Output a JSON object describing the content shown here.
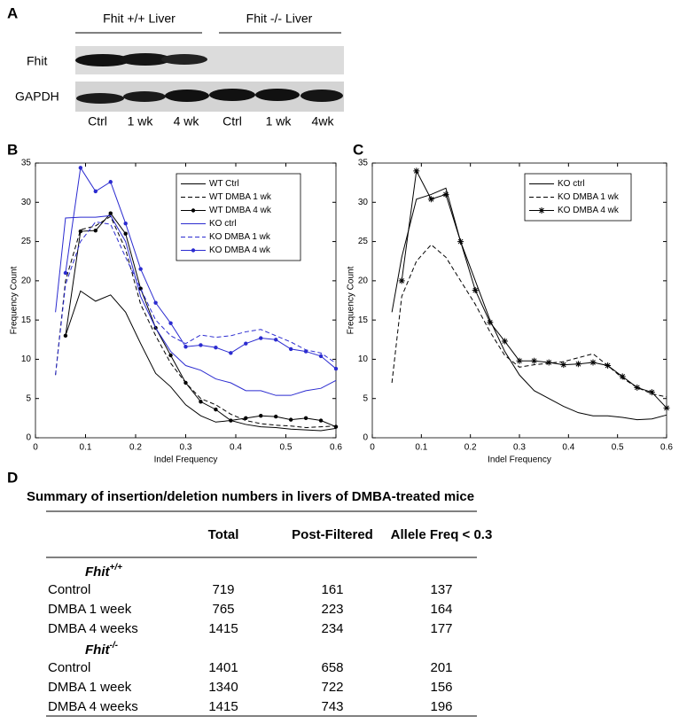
{
  "panel_labels": [
    "A",
    "B",
    "C",
    "D"
  ],
  "blot": {
    "groups": [
      "Fhit +/+ Liver",
      "Fhit  -/- Liver"
    ],
    "rows": [
      "Fhit",
      "GAPDH"
    ],
    "lanes": [
      "Ctrl",
      "1 wk",
      "4 wk",
      "Ctrl",
      "1 wk",
      "4wk"
    ]
  },
  "chart_data": [
    {
      "type": "line",
      "xlabel": "Indel Frequency",
      "ylabel": "Frequency Count",
      "x": [
        0.04,
        0.06,
        0.09,
        0.12,
        0.15,
        0.18,
        0.21,
        0.24,
        0.27,
        0.3,
        0.33,
        0.36,
        0.39,
        0.42,
        0.45,
        0.48,
        0.51,
        0.54,
        0.57,
        0.6
      ],
      "xlim": [
        0,
        0.6
      ],
      "xticks": [
        0,
        0.1,
        0.2,
        0.3,
        0.4,
        0.5,
        0.6
      ],
      "ylim": [
        0,
        35
      ],
      "yticks": [
        0,
        5,
        10,
        15,
        20,
        25,
        30,
        35
      ],
      "legend": "upper right",
      "series": [
        {
          "name": "WT Ctrl",
          "color": "#000000",
          "linestyle": "solid",
          "values": [
            null,
            13,
            18.7,
            17.4,
            18.2,
            16,
            12,
            8.2,
            6.5,
            4.2,
            2.8,
            2.0,
            2.2,
            1.7,
            1.4,
            1.3,
            1.1,
            1.0,
            0.9,
            1.2
          ]
        },
        {
          "name": "WT DMBA 1 wk",
          "color": "#000000",
          "linestyle": "dashed",
          "values": [
            8,
            20,
            26.5,
            27,
            28.2,
            24,
            17,
            13,
            9.5,
            7,
            5,
            4.2,
            3,
            2.2,
            1.8,
            1.6,
            1.5,
            1.3,
            1.4,
            1.5
          ]
        },
        {
          "name": "WT DMBA 4 wk",
          "color": "#000000",
          "linestyle": "solid",
          "marker": "dot",
          "values": [
            null,
            13,
            26.3,
            26.4,
            28.6,
            26,
            19,
            14,
            10.5,
            7,
            4.6,
            3.6,
            2.2,
            2.5,
            2.8,
            2.7,
            2.3,
            2.5,
            2.2,
            1.4
          ]
        },
        {
          "name": "KO ctrl",
          "color": "#2b2bd0",
          "linestyle": "solid",
          "values": [
            16,
            28,
            28.1,
            28.1,
            28.3,
            25,
            18,
            14,
            11,
            9.2,
            8.6,
            7.5,
            7.0,
            6.0,
            6.0,
            5.4,
            5.4,
            6.0,
            6.3,
            7.3
          ]
        },
        {
          "name": "KO DMBA 1 wk",
          "color": "#2b2bd0",
          "linestyle": "dashed",
          "values": [
            8,
            19.5,
            25,
            27.5,
            27.2,
            23,
            19,
            15,
            13,
            12,
            13.1,
            12.8,
            13,
            13.5,
            13.8,
            13,
            12.2,
            11.2,
            10.8,
            9.5
          ]
        },
        {
          "name": "KO DMBA 4 wk",
          "color": "#2b2bd0",
          "linestyle": "solid",
          "marker": "dot",
          "values": [
            null,
            21,
            34.4,
            31.4,
            32.6,
            27.3,
            21.5,
            17.2,
            14.6,
            11.6,
            11.8,
            11.5,
            10.8,
            12.0,
            12.7,
            12.5,
            11.3,
            11.0,
            10.4,
            8.8
          ]
        }
      ]
    },
    {
      "type": "line",
      "xlabel": "Indel Frequency",
      "ylabel": "Frequency Count",
      "x": [
        0.04,
        0.06,
        0.09,
        0.12,
        0.15,
        0.18,
        0.21,
        0.24,
        0.27,
        0.3,
        0.33,
        0.36,
        0.39,
        0.42,
        0.45,
        0.48,
        0.51,
        0.54,
        0.57,
        0.6
      ],
      "xlim": [
        0,
        0.6
      ],
      "xticks": [
        0,
        0.1,
        0.2,
        0.3,
        0.4,
        0.5,
        0.6
      ],
      "ylim": [
        0,
        35
      ],
      "yticks": [
        0,
        5,
        10,
        15,
        20,
        25,
        30,
        35
      ],
      "legend": "upper right",
      "series": [
        {
          "name": "KO ctrl",
          "color": "#000000",
          "linestyle": "solid",
          "values": [
            16,
            23,
            30.4,
            31,
            31.8,
            25,
            20,
            15,
            11,
            8,
            6,
            5,
            4,
            3.2,
            2.8,
            2.8,
            2.6,
            2.3,
            2.4,
            2.9
          ]
        },
        {
          "name": "KO DMBA 1 wk",
          "color": "#000000",
          "linestyle": "dashed",
          "values": [
            7,
            18,
            22.5,
            24.6,
            23,
            20,
            17,
            13.5,
            10.5,
            9,
            9.3,
            9.5,
            9.7,
            10.2,
            10.7,
            9.2,
            7.6,
            6.4,
            5.6,
            5.2
          ]
        },
        {
          "name": "KO DMBA 4 wk",
          "color": "#000000",
          "linestyle": "solid",
          "marker": "star",
          "values": [
            null,
            20,
            34,
            30.4,
            31,
            25,
            18.8,
            14.7,
            12.3,
            9.8,
            9.8,
            9.6,
            9.3,
            9.4,
            9.6,
            9.2,
            7.8,
            6.4,
            5.8,
            3.8
          ]
        }
      ]
    }
  ],
  "table": {
    "title": "Summary of insertion/deletion numbers in livers of DMBA-treated mice",
    "columns": [
      "Total",
      "Post-Filtered",
      "Allele Freq < 0.3"
    ],
    "groups": [
      {
        "name": "Fhit",
        "superscript": "+/+",
        "rows": [
          [
            "Control",
            "719",
            "161",
            "137"
          ],
          [
            "DMBA 1 week",
            "765",
            "223",
            "164"
          ],
          [
            "DMBA 4 weeks",
            "1415",
            "234",
            "177"
          ]
        ]
      },
      {
        "name": "Fhit",
        "superscript": "-/-",
        "rows": [
          [
            "Control",
            "1401",
            "658",
            "201"
          ],
          [
            "DMBA 1 week",
            "1340",
            "722",
            "156"
          ],
          [
            "DMBA 4 weeks",
            "1415",
            "743",
            "196"
          ]
        ]
      }
    ]
  }
}
